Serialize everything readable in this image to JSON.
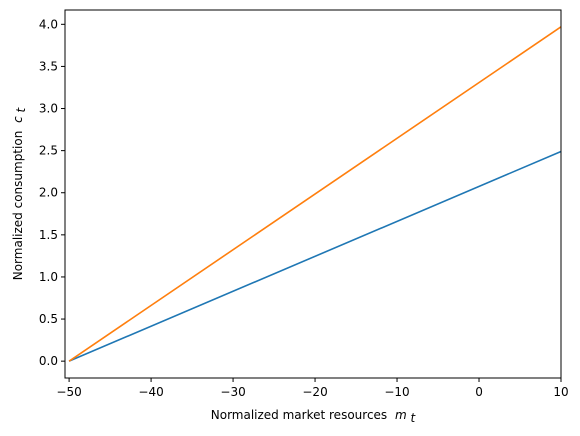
{
  "chart_data": {
    "type": "line",
    "title": "",
    "xlabel": "Normalized market resources",
    "xlabel_symbol": "m",
    "xlabel_subscript": "t",
    "ylabel": "Normalized consumption",
    "ylabel_symbol": "c",
    "ylabel_subscript": "t",
    "xlim": [
      -50.5,
      10
    ],
    "ylim": [
      -0.2,
      4.17
    ],
    "xticks": [
      -50,
      -40,
      -30,
      -20,
      -10,
      0,
      10
    ],
    "xtick_labels": [
      "−50",
      "−40",
      "−30",
      "−20",
      "−10",
      "0",
      "10"
    ],
    "yticks": [
      0.0,
      0.5,
      1.0,
      1.5,
      2.0,
      2.5,
      3.0,
      3.5,
      4.0
    ],
    "ytick_labels": [
      "0.0",
      "0.5",
      "1.0",
      "1.5",
      "2.0",
      "2.5",
      "3.0",
      "3.5",
      "4.0"
    ],
    "grid": false,
    "legend": "none",
    "series": [
      {
        "color": "#1f77b4",
        "x": [
          -50,
          10
        ],
        "y": [
          0.0,
          2.49
        ]
      },
      {
        "color": "#ff7f0e",
        "x": [
          -50,
          10
        ],
        "y": [
          0.0,
          3.97
        ]
      }
    ]
  }
}
